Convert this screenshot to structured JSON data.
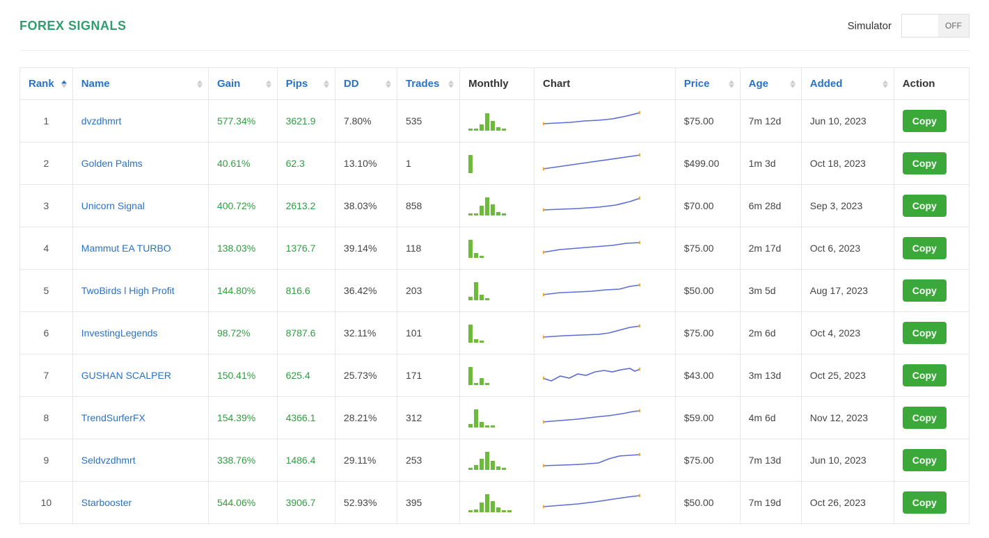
{
  "title": "FOREX SIGNALS",
  "simulator": {
    "label": "Simulator",
    "state": "OFF"
  },
  "columns": {
    "rank": {
      "label": "Rank",
      "sortable": true,
      "sorted": "asc",
      "link": true,
      "plain": false
    },
    "name": {
      "label": "Name",
      "sortable": true,
      "sorted": null,
      "link": true,
      "plain": false
    },
    "gain": {
      "label": "Gain",
      "sortable": true,
      "sorted": null,
      "link": true,
      "plain": false
    },
    "pips": {
      "label": "Pips",
      "sortable": true,
      "sorted": null,
      "link": true,
      "plain": false
    },
    "dd": {
      "label": "DD",
      "sortable": true,
      "sorted": null,
      "link": true,
      "plain": false
    },
    "trades": {
      "label": "Trades",
      "sortable": true,
      "sorted": null,
      "link": true,
      "plain": false
    },
    "monthly": {
      "label": "Monthly",
      "sortable": false,
      "sorted": null,
      "link": false,
      "plain": true
    },
    "chart": {
      "label": "Chart",
      "sortable": false,
      "sorted": null,
      "link": false,
      "plain": true
    },
    "price": {
      "label": "Price",
      "sortable": true,
      "sorted": null,
      "link": true,
      "plain": false
    },
    "age": {
      "label": "Age",
      "sortable": true,
      "sorted": null,
      "link": true,
      "plain": false
    },
    "added": {
      "label": "Added",
      "sortable": true,
      "sorted": null,
      "link": true,
      "plain": false
    },
    "action": {
      "label": "Action",
      "sortable": false,
      "sorted": null,
      "link": false,
      "plain": true
    }
  },
  "action_label": "Copy",
  "style": {
    "link_color": "#2a72c4",
    "green_text": "#2e9e3f",
    "header_green": "#2e9e6f",
    "border_color": "#e6e6e6",
    "bar_color": "#6dbb3b",
    "line_color": "#5a6bd8",
    "dot_color": "#f5a623",
    "copy_bg": "#3aa93a"
  },
  "rows": [
    {
      "rank": 1,
      "name": "dvzdhmrt",
      "gain": "577.34%",
      "pips": "3621.9",
      "dd": "7.80%",
      "trades": "535",
      "price": "$75.00",
      "age": "7m 12d",
      "added": "Jun 10, 2023",
      "monthly_bars": [
        0.1,
        0.1,
        0.35,
        0.95,
        0.55,
        0.2,
        0.1
      ],
      "chart_points": [
        0,
        18,
        20,
        17,
        40,
        16,
        60,
        14,
        80,
        13,
        100,
        11,
        120,
        7,
        140,
        2
      ],
      "chart_dots": [
        [
          0,
          18
        ],
        [
          140,
          2
        ]
      ]
    },
    {
      "rank": 2,
      "name": "Golden Palms",
      "gain": "40.61%",
      "pips": "62.3",
      "dd": "13.10%",
      "trades": "1",
      "price": "$499.00",
      "age": "1m 3d",
      "added": "Oct 18, 2023",
      "monthly_bars": [
        1.0
      ],
      "chart_points": [
        0,
        22,
        70,
        12,
        140,
        2
      ],
      "chart_dots": [
        [
          0,
          22
        ],
        [
          140,
          2
        ]
      ]
    },
    {
      "rank": 3,
      "name": "Unicorn Signal",
      "gain": "400.72%",
      "pips": "2613.2",
      "dd": "38.03%",
      "trades": "858",
      "price": "$70.00",
      "age": "6m 28d",
      "added": "Sep 3, 2023",
      "monthly_bars": [
        0.1,
        0.1,
        0.55,
        1.0,
        0.6,
        0.18,
        0.12
      ],
      "chart_points": [
        0,
        20,
        25,
        19,
        50,
        18,
        80,
        16,
        105,
        13,
        125,
        8,
        140,
        3
      ],
      "chart_dots": [
        [
          0,
          20
        ],
        [
          140,
          3
        ]
      ]
    },
    {
      "rank": 4,
      "name": "Mammut EA TURBO",
      "gain": "138.03%",
      "pips": "1376.7",
      "dd": "39.14%",
      "trades": "118",
      "price": "$75.00",
      "age": "2m 17d",
      "added": "Oct 6, 2023",
      "monthly_bars": [
        1.0,
        0.25,
        0.1
      ],
      "chart_points": [
        0,
        20,
        25,
        16,
        50,
        14,
        75,
        12,
        100,
        10,
        120,
        7,
        140,
        6
      ],
      "chart_dots": [
        [
          0,
          20
        ],
        [
          140,
          6
        ]
      ]
    },
    {
      "rank": 5,
      "name": "TwoBirds l High Profit",
      "gain": "144.80%",
      "pips": "816.6",
      "dd": "36.42%",
      "trades": "203",
      "price": "$50.00",
      "age": "3m 5d",
      "added": "Aug 17, 2023",
      "monthly_bars": [
        0.2,
        1.0,
        0.3,
        0.1
      ],
      "chart_points": [
        0,
        20,
        25,
        17,
        50,
        16,
        70,
        15,
        90,
        13,
        110,
        12,
        125,
        8,
        140,
        6
      ],
      "chart_dots": [
        [
          0,
          20
        ],
        [
          140,
          6
        ]
      ]
    },
    {
      "rank": 6,
      "name": "InvestingLegends",
      "gain": "98.72%",
      "pips": "8787.6",
      "dd": "32.11%",
      "trades": "101",
      "price": "$75.00",
      "age": "2m 6d",
      "added": "Oct 4, 2023",
      "monthly_bars": [
        1.0,
        0.2,
        0.1
      ],
      "chart_points": [
        0,
        20,
        30,
        18,
        55,
        17,
        80,
        16,
        95,
        14,
        110,
        10,
        125,
        6,
        140,
        4
      ],
      "chart_dots": [
        [
          0,
          20
        ],
        [
          140,
          4
        ]
      ]
    },
    {
      "rank": 7,
      "name": "GUSHAN SCALPER",
      "gain": "150.41%",
      "pips": "625.4",
      "dd": "25.73%",
      "trades": "171",
      "price": "$43.00",
      "age": "3m 13d",
      "added": "Oct 25, 2023",
      "monthly_bars": [
        1.0,
        0.1,
        0.4,
        0.1
      ],
      "chart_points": [
        0,
        18,
        12,
        22,
        25,
        15,
        38,
        18,
        50,
        12,
        62,
        14,
        75,
        9,
        88,
        7,
        100,
        9,
        112,
        6,
        125,
        4,
        132,
        8,
        140,
        5
      ],
      "chart_dots": [
        [
          0,
          18
        ],
        [
          140,
          5
        ]
      ]
    },
    {
      "rank": 8,
      "name": "TrendSurferFX",
      "gain": "154.39%",
      "pips": "4366.1",
      "dd": "28.21%",
      "trades": "312",
      "price": "$59.00",
      "age": "4m 6d",
      "added": "Nov 12, 2023",
      "monthly_bars": [
        0.2,
        1.0,
        0.3,
        0.1,
        0.1
      ],
      "chart_points": [
        0,
        20,
        25,
        18,
        50,
        16,
        75,
        13,
        95,
        11,
        115,
        8,
        130,
        5,
        140,
        4
      ],
      "chart_dots": [
        [
          0,
          20
        ],
        [
          140,
          4
        ]
      ]
    },
    {
      "rank": 9,
      "name": "Seldvzdhmrt",
      "gain": "338.76%",
      "pips": "1486.4",
      "dd": "29.11%",
      "trades": "253",
      "price": "$75.00",
      "age": "7m 13d",
      "added": "Jun 10, 2023",
      "monthly_bars": [
        0.1,
        0.25,
        0.6,
        1.0,
        0.5,
        0.2,
        0.1
      ],
      "chart_points": [
        0,
        22,
        30,
        21,
        55,
        20,
        80,
        18,
        95,
        12,
        110,
        8,
        125,
        7,
        140,
        6
      ],
      "chart_dots": [
        [
          0,
          22
        ],
        [
          140,
          6
        ]
      ]
    },
    {
      "rank": 10,
      "name": "Starbooster",
      "gain": "544.06%",
      "pips": "3906.7",
      "dd": "52.93%",
      "trades": "395",
      "price": "$50.00",
      "age": "7m 19d",
      "added": "Oct 26, 2023",
      "monthly_bars": [
        0.1,
        0.15,
        0.55,
        1.0,
        0.6,
        0.25,
        0.12,
        0.1
      ],
      "chart_points": [
        0,
        20,
        25,
        18,
        50,
        16,
        75,
        13,
        95,
        10,
        115,
        7,
        130,
        5,
        140,
        4
      ],
      "chart_dots": [
        [
          0,
          20
        ],
        [
          140,
          4
        ]
      ]
    }
  ]
}
